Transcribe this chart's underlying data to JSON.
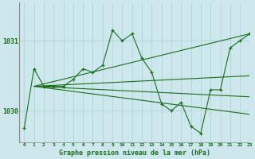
{
  "title": "Graphe pression niveau de la mer (hPa)",
  "bg_color": "#cce8ec",
  "grid_color": "#b0cdd4",
  "line_color": "#1a6e1a",
  "xlim": [
    -0.5,
    23
  ],
  "ylim": [
    1029.55,
    1031.55
  ],
  "yticks": [
    1030,
    1031
  ],
  "xticks": [
    0,
    1,
    2,
    3,
    4,
    5,
    6,
    7,
    8,
    9,
    10,
    11,
    12,
    13,
    14,
    15,
    16,
    17,
    18,
    19,
    20,
    21,
    22,
    23
  ],
  "series_main": {
    "x": [
      0,
      1,
      2,
      3,
      4,
      5,
      6,
      7,
      8,
      9,
      10,
      11,
      12,
      13,
      14,
      15,
      16,
      17,
      18,
      19,
      20,
      21,
      22,
      23
    ],
    "y": [
      1029.75,
      1030.6,
      1030.35,
      1030.35,
      1030.35,
      1030.45,
      1030.6,
      1030.55,
      1030.65,
      1031.15,
      1031.0,
      1031.1,
      1030.75,
      1030.55,
      1030.1,
      1030.0,
      1030.12,
      1029.78,
      1029.68,
      1030.3,
      1030.3,
      1030.9,
      1031.0,
      1031.1
    ]
  },
  "series_upper": {
    "x": [
      1,
      23
    ],
    "y": [
      1030.35,
      1031.1
    ]
  },
  "series_lower": {
    "x": [
      1,
      23
    ],
    "y": [
      1030.35,
      1029.95
    ]
  },
  "series_mid1": {
    "x": [
      1,
      23
    ],
    "y": [
      1030.35,
      1030.5
    ]
  },
  "series_mid2": {
    "x": [
      1,
      23
    ],
    "y": [
      1030.35,
      1030.2
    ]
  }
}
